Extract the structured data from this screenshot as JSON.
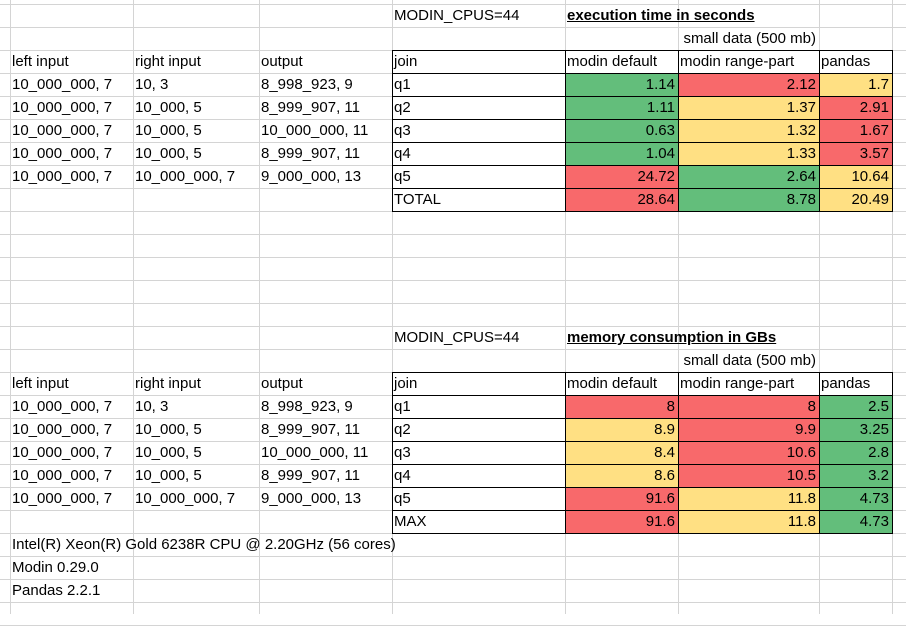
{
  "colors": {
    "good": "#63be7b",
    "mid": "#ffe083",
    "bad": "#f8696b",
    "gridline": "#d4d4d4"
  },
  "sections": [
    {
      "env": "MODIN_CPUS=44",
      "title": "execution time in seconds",
      "subtitle": "small data (500 mb)",
      "left_headers": [
        "left input",
        "right input",
        "output"
      ],
      "headers": [
        "join",
        "modin default",
        "modin range-part",
        "pandas"
      ],
      "rows": [
        {
          "left": "10_000_000, 7",
          "right": "10, 3",
          "out": "8_998_923, 9",
          "join": "q1",
          "v": [
            "1.14",
            "2.12",
            "1.7"
          ],
          "c": [
            "good",
            "bad",
            "mid"
          ]
        },
        {
          "left": "10_000_000, 7",
          "right": "10_000, 5",
          "out": "8_999_907, 11",
          "join": "q2",
          "v": [
            "1.11",
            "1.37",
            "2.91"
          ],
          "c": [
            "good",
            "mid",
            "bad"
          ]
        },
        {
          "left": "10_000_000, 7",
          "right": "10_000, 5",
          "out": "10_000_000, 11",
          "join": "q3",
          "v": [
            "0.63",
            "1.32",
            "1.67"
          ],
          "c": [
            "good",
            "mid",
            "bad"
          ]
        },
        {
          "left": "10_000_000, 7",
          "right": "10_000, 5",
          "out": "8_999_907, 11",
          "join": "q4",
          "v": [
            "1.04",
            "1.33",
            "3.57"
          ],
          "c": [
            "good",
            "mid",
            "bad"
          ]
        },
        {
          "left": "10_000_000, 7",
          "right": "10_000_000, 7",
          "out": "9_000_000, 13",
          "join": "q5",
          "v": [
            "24.72",
            "2.64",
            "10.64"
          ],
          "c": [
            "bad",
            "good",
            "mid"
          ]
        }
      ],
      "total": {
        "label": "TOTAL",
        "v": [
          "28.64",
          "8.78",
          "20.49"
        ],
        "c": [
          "bad",
          "good",
          "mid"
        ]
      }
    },
    {
      "env": "MODIN_CPUS=44",
      "title": "memory consumption in GBs",
      "subtitle": "small data (500 mb)",
      "left_headers": [
        "left input",
        "right input",
        "output"
      ],
      "headers": [
        "join",
        "modin default",
        "modin range-part",
        "pandas"
      ],
      "rows": [
        {
          "left": "10_000_000, 7",
          "right": "10, 3",
          "out": "8_998_923, 9",
          "join": "q1",
          "v": [
            "8",
            "8",
            "2.5"
          ],
          "c": [
            "bad",
            "bad",
            "good"
          ]
        },
        {
          "left": "10_000_000, 7",
          "right": "10_000, 5",
          "out": "8_999_907, 11",
          "join": "q2",
          "v": [
            "8.9",
            "9.9",
            "3.25"
          ],
          "c": [
            "mid",
            "bad",
            "good"
          ]
        },
        {
          "left": "10_000_000, 7",
          "right": "10_000, 5",
          "out": "10_000_000, 11",
          "join": "q3",
          "v": [
            "8.4",
            "10.6",
            "2.8"
          ],
          "c": [
            "mid",
            "bad",
            "good"
          ]
        },
        {
          "left": "10_000_000, 7",
          "right": "10_000, 5",
          "out": "8_999_907, 11",
          "join": "q4",
          "v": [
            "8.6",
            "10.5",
            "3.2"
          ],
          "c": [
            "mid",
            "bad",
            "good"
          ]
        },
        {
          "left": "10_000_000, 7",
          "right": "10_000_000, 7",
          "out": "9_000_000, 13",
          "join": "q5",
          "v": [
            "91.6",
            "11.8",
            "4.73"
          ],
          "c": [
            "bad",
            "mid",
            "good"
          ]
        }
      ],
      "total": {
        "label": "MAX",
        "v": [
          "91.6",
          "11.8",
          "4.73"
        ],
        "c": [
          "bad",
          "mid",
          "good"
        ]
      }
    }
  ],
  "footer": [
    "Intel(R) Xeon(R) Gold 6238R CPU @ 2.20GHz (56 cores)",
    "Modin 0.29.0",
    "Pandas 2.2.1"
  ]
}
